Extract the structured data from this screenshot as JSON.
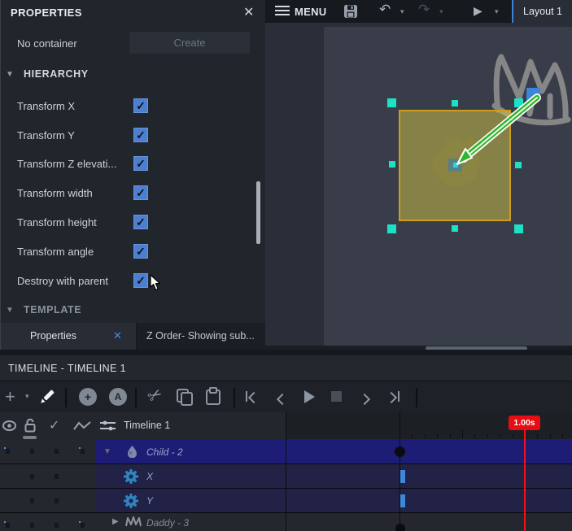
{
  "properties_panel": {
    "title": "PROPERTIES",
    "container_status": "No container",
    "create_button": "Create",
    "hierarchy_section": "HIERARCHY",
    "template_section": "TEMPLATE",
    "hierarchy_items": [
      {
        "label": "Transform X",
        "checked": true
      },
      {
        "label": "Transform Y",
        "checked": true
      },
      {
        "label": "Transform Z elevati...",
        "checked": true
      },
      {
        "label": "Transform width",
        "checked": true
      },
      {
        "label": "Transform height",
        "checked": true
      },
      {
        "label": "Transform angle",
        "checked": true
      },
      {
        "label": "Destroy with parent",
        "checked": true
      }
    ],
    "tabs": {
      "properties": "Properties",
      "z_order": "Z Order- Showing sub..."
    }
  },
  "top_bar": {
    "menu": "MENU",
    "layout_tab": "Layout 1"
  },
  "timeline": {
    "title": "TIMELINE - TIMELINE 1",
    "playhead_time": "1.00s",
    "tracks": {
      "header": "Timeline 1",
      "child": "Child - 2",
      "x": "X",
      "y": "Y",
      "daddy": "Daddy - 3"
    }
  },
  "icons": {
    "close": "✕",
    "dropdown": "▾",
    "triangle_down": "▼",
    "triangle_right": "▶",
    "undo": "↶",
    "redo": "↷",
    "play": "▶",
    "plus": "+",
    "scissors": "✂",
    "circle_plus": "+",
    "circle_a": "A",
    "check": "✓"
  },
  "colors": {
    "accent_blue": "#4d7fd0",
    "selection_teal": "#1ee0c6",
    "playhead_red": "#e60d14",
    "keyframe_blue": "#3f87d9",
    "selected_track_blue": "#1d1d75",
    "object_fill_yellow": "#d2c646",
    "object_border_orange": "#cf9d1c"
  }
}
